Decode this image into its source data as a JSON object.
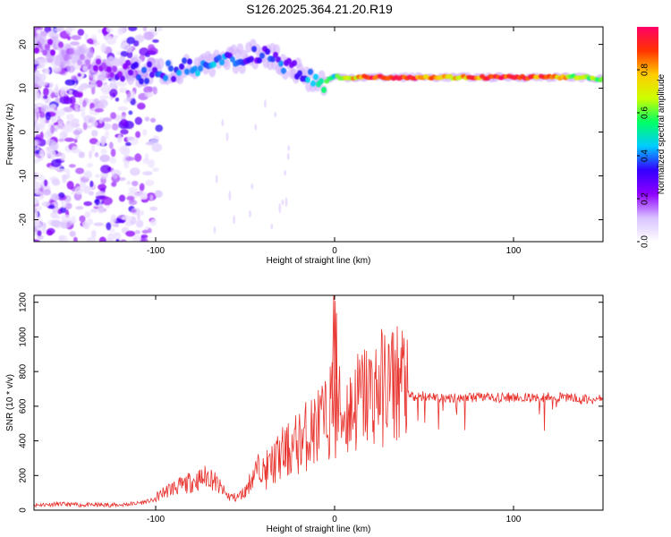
{
  "title": "S126.2025.364.21.20.R19",
  "chart_data": [
    {
      "type": "heatmap",
      "xlabel": "Height of straight line (km)",
      "ylabel": "Frequency (Hz)",
      "xlim": [
        -168,
        150
      ],
      "ylim": [
        -25,
        24
      ],
      "xticks": [
        -100,
        0,
        100
      ],
      "yticks": [
        -20,
        -10,
        0,
        10,
        20
      ],
      "colorbar": {
        "label": "Normalized spectral amplitude",
        "range": [
          0,
          1
        ],
        "ticks": [
          "0.0",
          "0.2",
          "0.4",
          "0.6",
          "0.8"
        ],
        "colormap": [
          "#ffffff",
          "#d9c2ff",
          "#8f00ff",
          "#3300ff",
          "#00ccff",
          "#00ff66",
          "#ccff00",
          "#ffcc00",
          "#ff3300",
          "#ff0066"
        ]
      },
      "ridge": {
        "x": [
          -168,
          -150,
          -130,
          -110,
          -90,
          -70,
          -50,
          -40,
          -30,
          -20,
          -10,
          0,
          10,
          20,
          40,
          60,
          80,
          100,
          120,
          140,
          150
        ],
        "frequency": [
          20,
          18,
          15,
          13.5,
          14,
          15,
          17,
          18.5,
          16,
          14,
          11,
          12.5,
          12.5,
          12.5,
          12.5,
          12.5,
          12.5,
          12.5,
          12.5,
          12.5,
          12
        ],
        "amplitude": [
          0.15,
          0.15,
          0.2,
          0.3,
          0.35,
          0.4,
          0.3,
          0.3,
          0.35,
          0.3,
          0.5,
          0.55,
          0.7,
          0.95,
          0.95,
          0.7,
          0.85,
          0.9,
          0.85,
          0.6,
          0.5
        ]
      },
      "grid": false
    },
    {
      "type": "line",
      "xlabel": "Height of straight line (km)",
      "ylabel": "SNR (10 * v/v)",
      "xlim": [
        -168,
        150
      ],
      "ylim": [
        0,
        1240
      ],
      "xticks": [
        -100,
        0,
        100
      ],
      "yticks": [
        0,
        200,
        400,
        600,
        800,
        1000,
        1200
      ],
      "series": [
        {
          "color": "#e8322d",
          "x": [
            -168,
            -155,
            -140,
            -120,
            -110,
            -100,
            -95,
            -90,
            -85,
            -80,
            -75,
            -70,
            -65,
            -60,
            -55,
            -50,
            -45,
            -40,
            -35,
            -30,
            -25,
            -20,
            -15,
            -10,
            -5,
            -1,
            0,
            2,
            5,
            10,
            15,
            20,
            25,
            30,
            35,
            40,
            41,
            45,
            50,
            60,
            70,
            80,
            90,
            100,
            110,
            120,
            130,
            140,
            150
          ],
          "y": [
            30,
            35,
            30,
            30,
            40,
            60,
            90,
            110,
            120,
            140,
            150,
            170,
            120,
            70,
            60,
            90,
            180,
            230,
            290,
            350,
            380,
            430,
            480,
            530,
            560,
            680,
            1200,
            640,
            600,
            650,
            720,
            740,
            770,
            800,
            820,
            830,
            660,
            650,
            660,
            650,
            650,
            650,
            650,
            650,
            650,
            650,
            650,
            640,
            640
          ]
        }
      ],
      "grid": false
    }
  ]
}
